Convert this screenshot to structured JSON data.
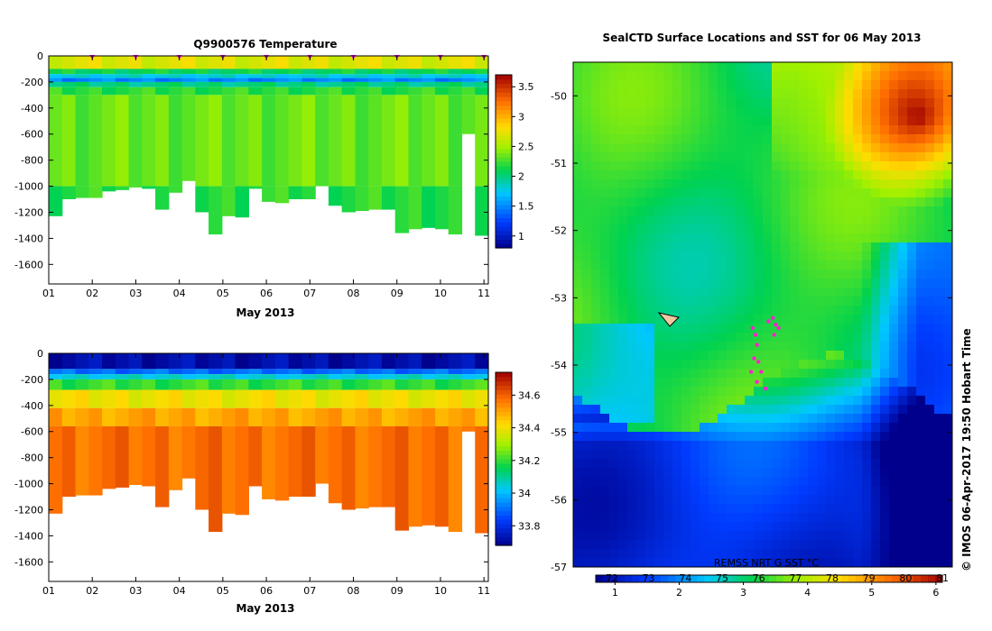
{
  "chart_data": [
    {
      "type": "heatmap",
      "title": "Q9900576  Temperature",
      "xlabel": "May 2013",
      "x_ticks": [
        "01",
        "02",
        "03",
        "04",
        "05",
        "06",
        "07",
        "08",
        "09",
        "10",
        "11"
      ],
      "xlim": [
        1,
        11.1
      ],
      "y_ticks": [
        0,
        -200,
        -400,
        -600,
        -800,
        -1000,
        -1200,
        -1400,
        -1600
      ],
      "ylim": [
        -1750,
        0
      ],
      "profile_depth_m": [
        1230,
        1100,
        1090,
        1090,
        1040,
        1030,
        1010,
        1020,
        1180,
        1050,
        960,
        1200,
        1370,
        1230,
        1240,
        1020,
        1120,
        1130,
        1100,
        1100,
        1000,
        1150,
        1200,
        1190,
        1180,
        1180,
        1360,
        1330,
        1320,
        1330,
        1370,
        600,
        1380
      ],
      "layers": [
        {
          "from": 0,
          "to": -100,
          "value": 2.7
        },
        {
          "from": -100,
          "to": -140,
          "value": 2.1
        },
        {
          "from": -140,
          "to": -170,
          "value": 1.8
        },
        {
          "from": -170,
          "to": -200,
          "value": 1.5
        },
        {
          "from": -200,
          "to": -240,
          "value": 2.0
        },
        {
          "from": -240,
          "to": -300,
          "value": 2.2
        },
        {
          "from": -300,
          "to": -1000,
          "value": 2.35
        },
        {
          "from": -1000,
          "to": -1400,
          "value": 2.2
        }
      ],
      "markers_x": [
        2,
        3,
        4,
        5,
        6,
        7,
        8,
        9,
        10,
        11
      ],
      "colorbar": {
        "min": 0.8,
        "max": 3.7,
        "ticks": [
          1,
          1.5,
          2,
          2.5,
          3,
          3.5
        ],
        "tick_labels": [
          "1",
          "1.5",
          "2",
          "2.5",
          "3",
          "3.5"
        ]
      }
    },
    {
      "type": "heatmap",
      "title": "",
      "xlabel": "May 2013",
      "x_ticks": [
        "01",
        "02",
        "03",
        "04",
        "05",
        "06",
        "07",
        "08",
        "09",
        "10",
        "11"
      ],
      "xlim": [
        1,
        11.1
      ],
      "y_ticks": [
        0,
        -200,
        -400,
        -600,
        -800,
        -1000,
        -1200,
        -1400,
        -1600
      ],
      "ylim": [
        -1750,
        0
      ],
      "profile_depth_m": [
        1230,
        1100,
        1090,
        1090,
        1040,
        1030,
        1010,
        1020,
        1180,
        1050,
        960,
        1200,
        1370,
        1230,
        1240,
        1020,
        1120,
        1130,
        1100,
        1100,
        1000,
        1150,
        1200,
        1190,
        1180,
        1180,
        1360,
        1330,
        1320,
        1330,
        1370,
        600,
        1380
      ],
      "layers": [
        {
          "from": 0,
          "to": -120,
          "value": 33.72
        },
        {
          "from": -120,
          "to": -160,
          "value": 33.9
        },
        {
          "from": -160,
          "to": -200,
          "value": 34.05
        },
        {
          "from": -200,
          "to": -280,
          "value": 34.2
        },
        {
          "from": -280,
          "to": -420,
          "value": 34.4
        },
        {
          "from": -420,
          "to": -560,
          "value": 34.5
        },
        {
          "from": -560,
          "to": -1400,
          "value": 34.58
        }
      ],
      "colorbar": {
        "min": 33.68,
        "max": 34.74,
        "ticks": [
          33.8,
          34,
          34.2,
          34.4,
          34.6
        ],
        "tick_labels": [
          "33.8",
          "34",
          "34.2",
          "34.4",
          "34.6"
        ]
      }
    },
    {
      "type": "heatmap",
      "title": "SealCTD Surface Locations and SST for 06 May 2013",
      "y_ticks": [
        "-50",
        "-51",
        "-52",
        "-53",
        "-54",
        "-55",
        "-56",
        "-57"
      ],
      "ylim": [
        -57,
        -49.5
      ],
      "colorbar_label": "REMSS NRT G SST °C",
      "colorbar": {
        "min": 0.7,
        "max": 6.1,
        "ticks": [
          1,
          2,
          3,
          4,
          5,
          6
        ],
        "tick_labels": [
          "1",
          "2",
          "3",
          "4",
          "5",
          "6"
        ],
        "ticks_top": [
          "72",
          "73",
          "74",
          "75",
          "76",
          "77",
          "78",
          "79",
          "80",
          "81"
        ]
      },
      "observations": [
        {
          "lon": 0.21,
          "lat": -53.45
        },
        {
          "lon": 0.23,
          "lat": -53.55
        },
        {
          "lon": 0.24,
          "lat": -53.7
        },
        {
          "lon": 0.22,
          "lat": -53.9
        },
        {
          "lon": 0.2,
          "lat": -54.1
        },
        {
          "lon": 0.25,
          "lat": -53.95
        },
        {
          "lon": 0.27,
          "lat": -54.1
        },
        {
          "lon": 0.24,
          "lat": -54.25
        },
        {
          "lon": 0.3,
          "lat": -54.35
        },
        {
          "lon": 0.32,
          "lat": -53.35
        },
        {
          "lon": 0.35,
          "lat": -53.3
        },
        {
          "lon": 0.37,
          "lat": -53.4
        },
        {
          "lon": 0.39,
          "lat": -53.45
        },
        {
          "lon": 0.36,
          "lat": -53.55
        }
      ],
      "watermark": "© IMOS 06-Apr-2017 19:50 Hobart Time"
    }
  ]
}
